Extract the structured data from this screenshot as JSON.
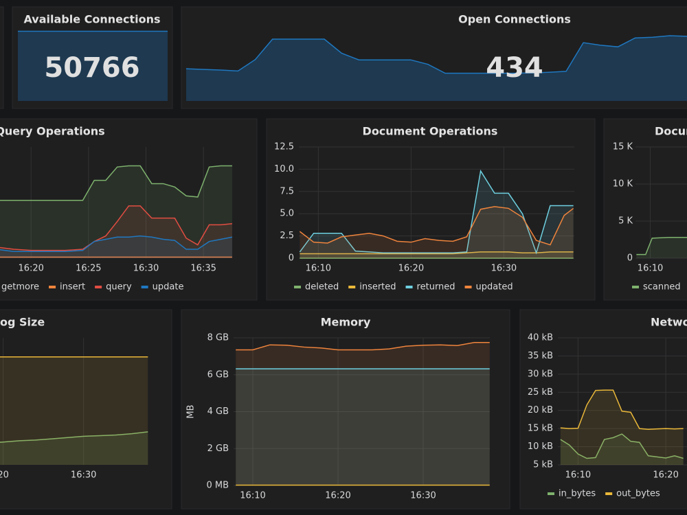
{
  "chart_data": [
    {
      "type": "stat",
      "title": "Available Connections",
      "value": 50766,
      "color": "#1f78c1",
      "ylim": [
        0,
        52000
      ],
      "values": [
        50766,
        50766,
        50770,
        50766,
        50762,
        50766,
        50766,
        50770,
        50766,
        50766
      ]
    },
    {
      "type": "stat",
      "title": "Open Connections",
      "value": 434,
      "color": "#1f78c1",
      "ylim": [
        250,
        470
      ],
      "values": [
        351,
        349,
        347,
        344,
        380,
        444,
        444,
        444,
        444,
        400,
        379,
        379,
        379,
        379,
        365,
        337,
        337,
        337,
        337,
        337,
        338,
        340,
        343,
        433,
        425,
        420,
        448,
        450,
        455,
        453
      ]
    },
    {
      "type": "line",
      "title": "Query Operations",
      "grid": true,
      "xlim": [
        17,
        37.8
      ],
      "ylim": [
        0,
        100
      ],
      "xticks": [
        {
          "value": 20,
          "label": "16:20"
        },
        {
          "value": 25,
          "label": "16:25"
        },
        {
          "value": 30,
          "label": "16:30"
        },
        {
          "value": 35,
          "label": "16:35"
        }
      ],
      "x": [
        17,
        18.5,
        20,
        21.5,
        23,
        24.5,
        25.5,
        26.5,
        27.5,
        28.5,
        29.5,
        30.5,
        31.5,
        32.5,
        33.5,
        34.5,
        35.5,
        36.5,
        37.5
      ],
      "series": [
        {
          "name": "getmore",
          "color": "#7eb26d",
          "values": [
            52,
            52,
            52,
            52,
            52,
            52,
            70,
            70,
            82,
            83,
            83,
            67,
            67,
            64,
            56,
            55,
            82,
            83,
            83
          ]
        },
        {
          "name": "insert",
          "color": "#ef843c",
          "values": [
            1,
            1,
            1,
            1,
            1,
            1,
            1,
            1,
            1,
            1,
            1,
            1,
            1,
            1,
            1,
            1,
            1,
            1,
            1
          ]
        },
        {
          "name": "query",
          "color": "#e24d42",
          "values": [
            10,
            8,
            7,
            7,
            7,
            8,
            15,
            20,
            33,
            47,
            47,
            36,
            36,
            36,
            18,
            12,
            30,
            30,
            31
          ]
        },
        {
          "name": "update",
          "color": "#1f78c1",
          "values": [
            8,
            6,
            6,
            6,
            6,
            7,
            15,
            17,
            19,
            19,
            20,
            19,
            17,
            16,
            8,
            8,
            15,
            17,
            19
          ]
        }
      ]
    },
    {
      "type": "line",
      "title": "Document Operations",
      "grid": true,
      "xlim": [
        7.9,
        37.6
      ],
      "ylim": [
        0,
        12.5
      ],
      "yticks": [
        0,
        2.5,
        {
          "value": 5,
          "label": "5.0"
        },
        7.5,
        {
          "value": 10,
          "label": "10.0"
        },
        12.5
      ],
      "xticks": [
        {
          "value": 10,
          "label": "16:10"
        },
        {
          "value": 20,
          "label": "16:20"
        },
        {
          "value": 30,
          "label": "16:30"
        }
      ],
      "x": [
        8,
        9.5,
        11,
        12.5,
        14,
        15.5,
        17,
        18.5,
        20,
        21.5,
        23,
        24.5,
        26,
        27.5,
        29,
        30.5,
        32,
        33.5,
        35,
        36.5,
        37.5
      ],
      "series": [
        {
          "name": "deleted",
          "color": "#7eb26d",
          "values": [
            0,
            0,
            0,
            0,
            0,
            0,
            0,
            0,
            0,
            0,
            0,
            0,
            0,
            0,
            0,
            0,
            0,
            0,
            0,
            0,
            0
          ]
        },
        {
          "name": "inserted",
          "color": "#eab839",
          "values": [
            0.5,
            0.5,
            0.5,
            0.5,
            0.5,
            0.5,
            0.5,
            0.5,
            0.5,
            0.5,
            0.5,
            0.5,
            0.6,
            0.7,
            0.7,
            0.7,
            0.6,
            0.6,
            0.7,
            0.7,
            0.7
          ]
        },
        {
          "name": "returned",
          "color": "#6ed0e0",
          "values": [
            0.7,
            2.8,
            2.8,
            2.8,
            0.8,
            0.7,
            0.6,
            0.6,
            0.6,
            0.6,
            0.6,
            0.6,
            0.7,
            9.8,
            7.3,
            7.3,
            5.0,
            0.6,
            5.9,
            5.9,
            5.9
          ]
        },
        {
          "name": "updated",
          "color": "#ef843c",
          "values": [
            3.0,
            1.8,
            1.7,
            2.4,
            2.6,
            2.8,
            2.5,
            1.9,
            1.8,
            2.2,
            2.0,
            1.9,
            2.4,
            5.5,
            5.8,
            5.6,
            4.6,
            2.0,
            1.5,
            4.8,
            5.6
          ]
        }
      ]
    },
    {
      "type": "line",
      "title": "Docum",
      "grid": true,
      "xlim": [
        8.4,
        21.4
      ],
      "ylim": [
        0,
        15000
      ],
      "yticks": [
        0,
        {
          "value": 5000,
          "label": "5 K"
        },
        {
          "value": 10000,
          "label": "10 K"
        },
        {
          "value": 15000,
          "label": "15 K"
        }
      ],
      "xticks": [
        {
          "value": 10,
          "label": "16:10"
        }
      ],
      "x": [
        8.5,
        9.5,
        10.2,
        12,
        14,
        16
      ],
      "series": [
        {
          "name": "scanned",
          "color": "#7eb26d",
          "values": [
            500,
            500,
            2700,
            2800,
            2800,
            2700
          ]
        }
      ]
    },
    {
      "type": "line",
      "title": "og Size",
      "grid": true,
      "xlim": [
        17.9,
        38.4
      ],
      "ylim": [
        0,
        100
      ],
      "xticks": [
        {
          "value": 20,
          "label": "20"
        },
        {
          "value": 30,
          "label": "16:30"
        }
      ],
      "x": [
        18,
        20,
        22,
        24,
        26,
        28,
        30,
        32,
        34,
        36,
        38
      ],
      "series": [
        {
          "color": "#7eb26d",
          "values": [
            17,
            18,
            19,
            19.5,
            20.5,
            21.5,
            22.5,
            23,
            23.5,
            24.5,
            26
          ]
        },
        {
          "color": "#eab839",
          "values": [
            85,
            85,
            85,
            85,
            85,
            85,
            85,
            85,
            85,
            85,
            85
          ]
        }
      ]
    },
    {
      "type": "line",
      "title": "Memory",
      "ylabel": "MB",
      "grid": true,
      "xlim": [
        7.74,
        37.82
      ],
      "ylim": [
        0,
        8
      ],
      "yticks": [
        {
          "value": 0,
          "label": "0 MB"
        },
        {
          "value": 2,
          "label": "2 GB"
        },
        {
          "value": 4,
          "label": "4 GB"
        },
        {
          "value": 6,
          "label": "6 GB"
        },
        {
          "value": 8,
          "label": "8 GB"
        }
      ],
      "xticks": [
        {
          "value": 10,
          "label": "16:10"
        },
        {
          "value": 20,
          "label": "16:20"
        },
        {
          "value": 30,
          "label": "16:30"
        }
      ],
      "x": [
        8,
        10,
        12,
        14,
        16,
        18,
        20,
        22,
        24,
        26,
        28,
        30,
        32,
        34,
        36,
        37.8
      ],
      "series": [
        {
          "color": "#ef843c",
          "values": [
            7.35,
            7.35,
            7.62,
            7.6,
            7.5,
            7.45,
            7.35,
            7.35,
            7.35,
            7.4,
            7.55,
            7.6,
            7.62,
            7.58,
            7.75,
            7.75
          ]
        },
        {
          "color": "#6ed0e0",
          "values": [
            6.32,
            6.32,
            6.32,
            6.32,
            6.32,
            6.32,
            6.32,
            6.32,
            6.32,
            6.32,
            6.32,
            6.32,
            6.32,
            6.32,
            6.32,
            6.32
          ]
        },
        {
          "color": "#eab839",
          "values": [
            0.02,
            0.02,
            0.02,
            0.02,
            0.02,
            0.02,
            0.02,
            0.02,
            0.02,
            0.02,
            0.02,
            0.02,
            0.02,
            0.02,
            0.02,
            0.02
          ]
        }
      ]
    },
    {
      "type": "line",
      "title": "Netwo",
      "grid": true,
      "xlim": [
        7.7,
        23.2
      ],
      "ylim": [
        5,
        40
      ],
      "yticks": [
        {
          "value": 5,
          "label": "5 kB"
        },
        {
          "value": 10,
          "label": "10 kB"
        },
        {
          "value": 15,
          "label": "15 kB"
        },
        {
          "value": 20,
          "label": "20 kB"
        },
        {
          "value": 25,
          "label": "25 kB"
        },
        {
          "value": 30,
          "label": "30 kB"
        },
        {
          "value": 35,
          "label": "35 kB"
        },
        {
          "value": 40,
          "label": "40 kB"
        }
      ],
      "xticks": [
        {
          "value": 10,
          "label": "16:10"
        },
        {
          "value": 20,
          "label": "16:20"
        }
      ],
      "x": [
        8,
        9,
        10,
        11,
        12,
        13,
        14,
        15,
        16,
        17,
        18,
        19,
        20,
        21,
        22
      ],
      "series": [
        {
          "name": "in_bytes",
          "color": "#7eb26d",
          "values": [
            12.0,
            10.5,
            8.0,
            6.8,
            7.0,
            12.0,
            12.5,
            13.5,
            11.5,
            11.2,
            7.5,
            7.2,
            6.9,
            7.5,
            6.8
          ]
        },
        {
          "name": "out_bytes",
          "color": "#eab839",
          "values": [
            15.2,
            15.0,
            15.1,
            21.5,
            25.5,
            25.6,
            25.6,
            19.8,
            19.5,
            15.0,
            14.8,
            14.9,
            15.0,
            14.9,
            15.0
          ]
        }
      ]
    }
  ]
}
